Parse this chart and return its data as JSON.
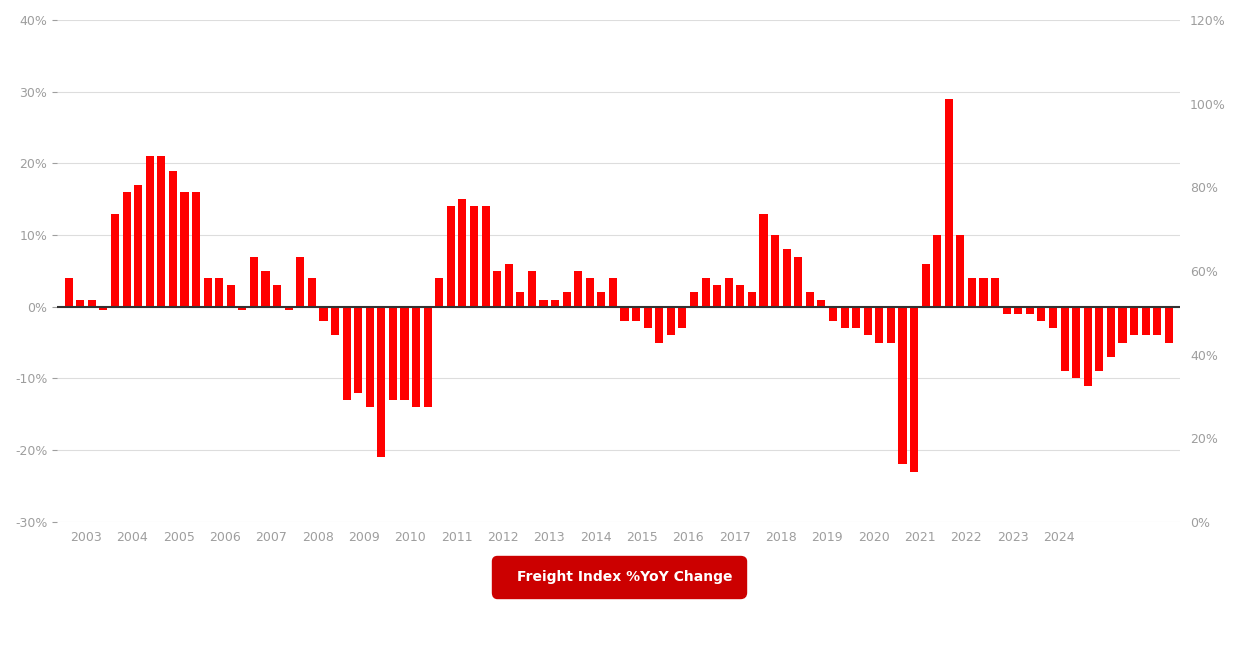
{
  "bar_color": "#FF0000",
  "background_color": "#FFFFFF",
  "legend_bg": "#CC0000",
  "legend_text": "Freight Index %YoY Change",
  "legend_text_color": "#FFFFFF",
  "ylim_left": [
    -0.3,
    0.4
  ],
  "ylim_right": [
    0.0,
    1.2
  ],
  "yticks_left": [
    -0.3,
    -0.2,
    -0.1,
    0.0,
    0.1,
    0.2,
    0.3,
    0.4
  ],
  "ytick_labels_left": [
    "-30%",
    "-20%",
    "-10%",
    "0%",
    "10%",
    "20%",
    "30%",
    "40%"
  ],
  "yticks_right": [
    0.0,
    0.2,
    0.4,
    0.6,
    0.8,
    1.0,
    1.2
  ],
  "ytick_labels_right": [
    "0%",
    "20%",
    "40%",
    "60%",
    "80%",
    "100%",
    "120%"
  ],
  "xtick_labels": [
    "2003",
    "2004",
    "2005",
    "2006",
    "2007",
    "2008",
    "2009",
    "2010",
    "2011",
    "2012",
    "2013",
    "2014",
    "2015",
    "2016",
    "2017",
    "2018",
    "2019",
    "2020",
    "2021",
    "2022",
    "2023",
    "2024"
  ],
  "values": [
    0.04,
    0.01,
    0.01,
    -0.005,
    0.13,
    0.16,
    0.17,
    0.21,
    0.21,
    0.19,
    0.16,
    0.16,
    0.04,
    0.04,
    0.03,
    -0.005,
    0.07,
    0.05,
    0.03,
    -0.005,
    0.07,
    0.04,
    -0.02,
    -0.04,
    -0.13,
    -0.12,
    -0.14,
    -0.21,
    -0.13,
    -0.13,
    -0.14,
    -0.14,
    0.04,
    0.14,
    0.15,
    0.14,
    0.14,
    0.05,
    0.06,
    0.02,
    0.05,
    0.01,
    0.01,
    0.02,
    0.05,
    0.04,
    0.02,
    0.04,
    -0.02,
    -0.02,
    -0.03,
    -0.05,
    -0.04,
    -0.03,
    0.02,
    0.04,
    0.03,
    0.04,
    0.03,
    0.02,
    0.13,
    0.1,
    0.08,
    0.07,
    0.02,
    0.01,
    -0.02,
    -0.03,
    -0.03,
    -0.04,
    -0.05,
    -0.05,
    -0.22,
    -0.23,
    0.06,
    0.1,
    0.29,
    0.1,
    0.04,
    0.04,
    0.04,
    -0.01,
    -0.01,
    -0.01,
    -0.02,
    -0.03,
    -0.09,
    -0.1,
    -0.11,
    -0.09,
    -0.07,
    -0.05,
    -0.04,
    -0.04,
    -0.04,
    -0.05
  ],
  "zero_line_color": "#333333",
  "grid_color": "#DDDDDD",
  "font_color": "#9E9E9E"
}
